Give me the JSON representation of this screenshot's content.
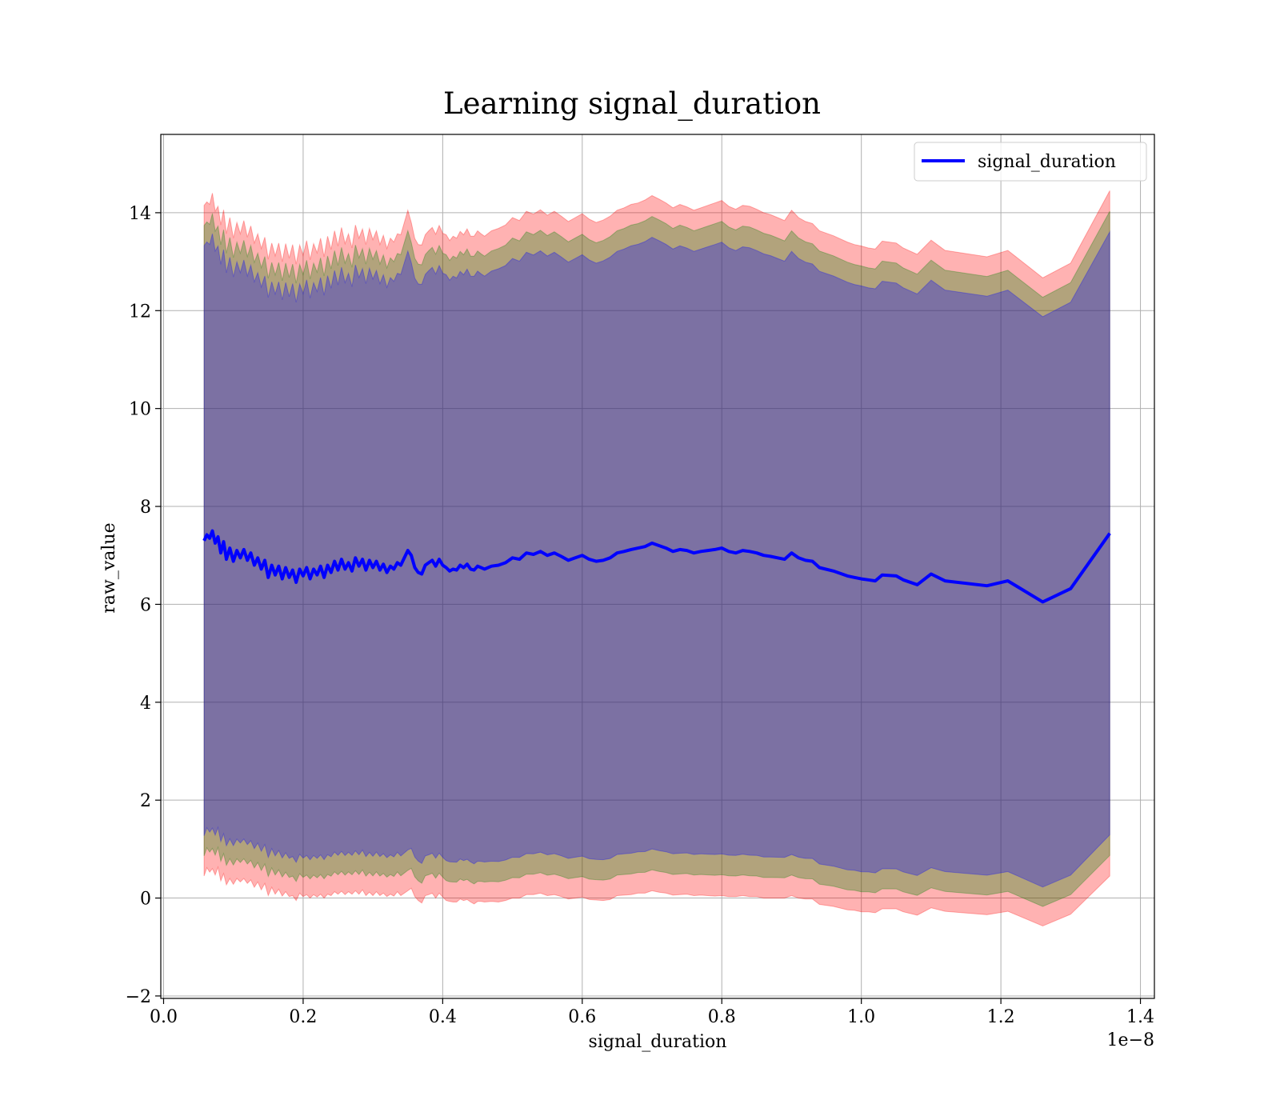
{
  "chart_data": {
    "type": "line",
    "title": "Learning signal_duration",
    "xlabel": "signal_duration",
    "ylabel": "raw_value",
    "x_offset_text": "1e−8",
    "xlim": [
      -0.004,
      1.42
    ],
    "ylim": [
      -2.05,
      15.6
    ],
    "x_ticks": [
      0.0,
      0.2,
      0.4,
      0.6,
      0.8,
      1.0,
      1.2,
      1.4
    ],
    "x_tick_labels": [
      "0.0",
      "0.2",
      "0.4",
      "0.6",
      "0.8",
      "1.0",
      "1.2",
      "1.4"
    ],
    "y_ticks": [
      -2,
      0,
      2,
      4,
      6,
      8,
      10,
      12,
      14
    ],
    "y_tick_labels": [
      "−2",
      "0",
      "2",
      "4",
      "6",
      "8",
      "10",
      "12",
      "14"
    ],
    "grid": true,
    "legend_position": "top-right",
    "series": [
      {
        "name": "signal_duration",
        "color": "#0000ff",
        "x": [
          0.058,
          0.062,
          0.066,
          0.07,
          0.074,
          0.078,
          0.082,
          0.086,
          0.09,
          0.095,
          0.1,
          0.105,
          0.11,
          0.115,
          0.12,
          0.125,
          0.13,
          0.135,
          0.14,
          0.145,
          0.15,
          0.155,
          0.16,
          0.165,
          0.17,
          0.175,
          0.18,
          0.185,
          0.19,
          0.195,
          0.2,
          0.205,
          0.21,
          0.215,
          0.22,
          0.225,
          0.23,
          0.235,
          0.24,
          0.245,
          0.25,
          0.255,
          0.26,
          0.265,
          0.27,
          0.275,
          0.28,
          0.285,
          0.29,
          0.295,
          0.3,
          0.305,
          0.31,
          0.315,
          0.32,
          0.325,
          0.33,
          0.335,
          0.34,
          0.345,
          0.35,
          0.355,
          0.36,
          0.365,
          0.37,
          0.375,
          0.38,
          0.385,
          0.39,
          0.395,
          0.4,
          0.405,
          0.41,
          0.415,
          0.42,
          0.425,
          0.43,
          0.435,
          0.44,
          0.445,
          0.45,
          0.455,
          0.46,
          0.47,
          0.48,
          0.49,
          0.5,
          0.51,
          0.52,
          0.53,
          0.54,
          0.55,
          0.56,
          0.57,
          0.58,
          0.59,
          0.6,
          0.61,
          0.62,
          0.63,
          0.64,
          0.65,
          0.66,
          0.67,
          0.68,
          0.69,
          0.7,
          0.71,
          0.72,
          0.73,
          0.74,
          0.75,
          0.76,
          0.77,
          0.78,
          0.79,
          0.8,
          0.81,
          0.82,
          0.83,
          0.84,
          0.85,
          0.86,
          0.87,
          0.88,
          0.89,
          0.9,
          0.91,
          0.92,
          0.93,
          0.94,
          0.96,
          0.98,
          0.99,
          1.0,
          1.01,
          1.02,
          1.03,
          1.05,
          1.06,
          1.08,
          1.1,
          1.12,
          1.18,
          1.21,
          1.26,
          1.3,
          1.356
        ],
        "mean": [
          7.3,
          7.42,
          7.35,
          7.5,
          7.25,
          7.38,
          7.05,
          7.28,
          6.92,
          7.15,
          6.88,
          7.1,
          6.95,
          7.12,
          6.9,
          7.05,
          6.8,
          6.95,
          6.72,
          6.9,
          6.55,
          6.8,
          6.6,
          6.78,
          6.52,
          6.75,
          6.55,
          6.7,
          6.45,
          6.72,
          6.58,
          6.75,
          6.52,
          6.72,
          6.6,
          6.78,
          6.55,
          6.8,
          6.65,
          6.88,
          6.7,
          6.92,
          6.72,
          6.85,
          6.68,
          6.95,
          6.78,
          6.92,
          6.7,
          6.9,
          6.75,
          6.88,
          6.7,
          6.82,
          6.65,
          6.78,
          6.72,
          6.85,
          6.8,
          6.95,
          7.1,
          7.0,
          6.75,
          6.65,
          6.62,
          6.8,
          6.85,
          6.9,
          6.78,
          6.92,
          6.8,
          6.75,
          6.68,
          6.72,
          6.7,
          6.8,
          6.75,
          6.82,
          6.72,
          6.7,
          6.78,
          6.75,
          6.72,
          6.78,
          6.8,
          6.85,
          6.95,
          6.92,
          7.05,
          7.02,
          7.08,
          7.0,
          7.05,
          6.98,
          6.9,
          6.95,
          7.0,
          6.92,
          6.88,
          6.9,
          6.95,
          7.05,
          7.08,
          7.12,
          7.15,
          7.18,
          7.25,
          7.2,
          7.15,
          7.08,
          7.12,
          7.1,
          7.05,
          7.08,
          7.1,
          7.12,
          7.15,
          7.08,
          7.05,
          7.1,
          7.08,
          7.05,
          7.0,
          6.98,
          6.95,
          6.92,
          7.05,
          6.95,
          6.9,
          6.88,
          6.75,
          6.68,
          6.58,
          6.55,
          6.52,
          6.5,
          6.48,
          6.6,
          6.58,
          6.5,
          6.4,
          6.62,
          6.48,
          6.38,
          6.48,
          6.05,
          6.32,
          7.45
        ],
        "std": [
          6.85,
          6.8,
          6.82,
          6.9,
          6.78,
          6.75,
          6.7,
          6.78,
          6.65,
          6.75,
          6.6,
          6.7,
          6.62,
          6.72,
          6.6,
          6.68,
          6.58,
          6.62,
          6.55,
          6.6,
          6.5,
          6.58,
          6.52,
          6.6,
          6.48,
          6.62,
          6.52,
          6.65,
          6.5,
          6.62,
          6.55,
          6.68,
          6.52,
          6.65,
          6.58,
          6.7,
          6.55,
          6.72,
          6.6,
          6.75,
          6.62,
          6.78,
          6.65,
          6.72,
          6.6,
          6.8,
          6.7,
          6.75,
          6.65,
          6.78,
          6.7,
          6.75,
          6.65,
          6.72,
          6.62,
          6.7,
          6.68,
          6.72,
          6.75,
          6.85,
          6.95,
          6.8,
          6.72,
          6.7,
          6.72,
          6.75,
          6.78,
          6.8,
          6.78,
          6.82,
          6.78,
          6.8,
          6.75,
          6.8,
          6.78,
          6.82,
          6.8,
          6.85,
          6.8,
          6.82,
          6.85,
          6.82,
          6.8,
          6.85,
          6.88,
          6.9,
          6.95,
          6.92,
          6.98,
          6.95,
          6.98,
          6.95,
          6.98,
          6.95,
          6.92,
          6.95,
          6.98,
          6.95,
          6.92,
          6.95,
          6.98,
          7.0,
          7.02,
          7.05,
          7.05,
          7.08,
          7.1,
          7.08,
          7.05,
          7.02,
          7.05,
          7.02,
          7.0,
          7.02,
          7.05,
          7.08,
          7.1,
          7.05,
          7.02,
          7.05,
          7.05,
          7.02,
          7.0,
          6.98,
          6.95,
          6.92,
          7.0,
          6.95,
          6.92,
          6.9,
          6.88,
          6.85,
          6.82,
          6.8,
          6.8,
          6.78,
          6.78,
          6.82,
          6.8,
          6.78,
          6.75,
          6.82,
          6.75,
          6.72,
          6.75,
          6.62,
          6.65,
          7.0
        ],
        "band_scales": [
          1.0,
          0.94,
          0.88
        ],
        "band_colors": [
          "#ff0000",
          "#008000",
          "#0000ff"
        ]
      }
    ]
  }
}
